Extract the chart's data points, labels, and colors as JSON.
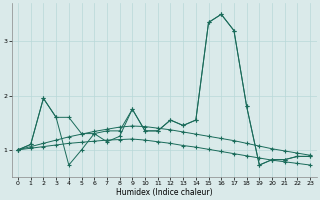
{
  "xlabel": "Humidex (Indice chaleur)",
  "x": [
    0,
    1,
    2,
    3,
    4,
    5,
    6,
    7,
    8,
    9,
    10,
    11,
    12,
    13,
    14,
    15,
    16,
    17,
    18,
    19,
    20,
    21,
    22,
    23
  ],
  "series": [
    [
      1.0,
      1.1,
      1.95,
      1.6,
      0.72,
      1.0,
      1.3,
      1.15,
      1.25,
      1.75,
      1.35,
      1.35,
      1.55,
      1.45,
      1.55,
      3.35,
      3.5,
      3.2,
      1.8,
      0.72,
      0.82,
      0.82,
      0.88,
      0.88
    ],
    [
      1.0,
      1.1,
      1.95,
      1.6,
      1.6,
      1.3,
      1.3,
      1.35,
      1.35,
      1.75,
      1.35,
      1.35,
      1.55,
      1.45,
      1.55,
      3.35,
      3.5,
      3.2,
      1.8,
      0.72,
      0.82,
      0.82,
      0.88,
      0.88
    ],
    [
      1.0,
      1.06,
      1.12,
      1.18,
      1.24,
      1.29,
      1.34,
      1.38,
      1.42,
      1.44,
      1.43,
      1.4,
      1.37,
      1.33,
      1.29,
      1.25,
      1.21,
      1.17,
      1.12,
      1.07,
      1.02,
      0.98,
      0.94,
      0.9
    ],
    [
      1.0,
      1.03,
      1.06,
      1.09,
      1.12,
      1.14,
      1.16,
      1.18,
      1.19,
      1.2,
      1.18,
      1.15,
      1.12,
      1.08,
      1.05,
      1.01,
      0.97,
      0.93,
      0.89,
      0.85,
      0.81,
      0.78,
      0.75,
      0.72
    ]
  ],
  "line_color": "#1a6b5a",
  "bg_color": "#daeaea",
  "grid_color": "#b8d8d8",
  "ylim": [
    0.5,
    3.7
  ],
  "yticks": [
    1,
    2,
    3
  ],
  "marker": "+"
}
